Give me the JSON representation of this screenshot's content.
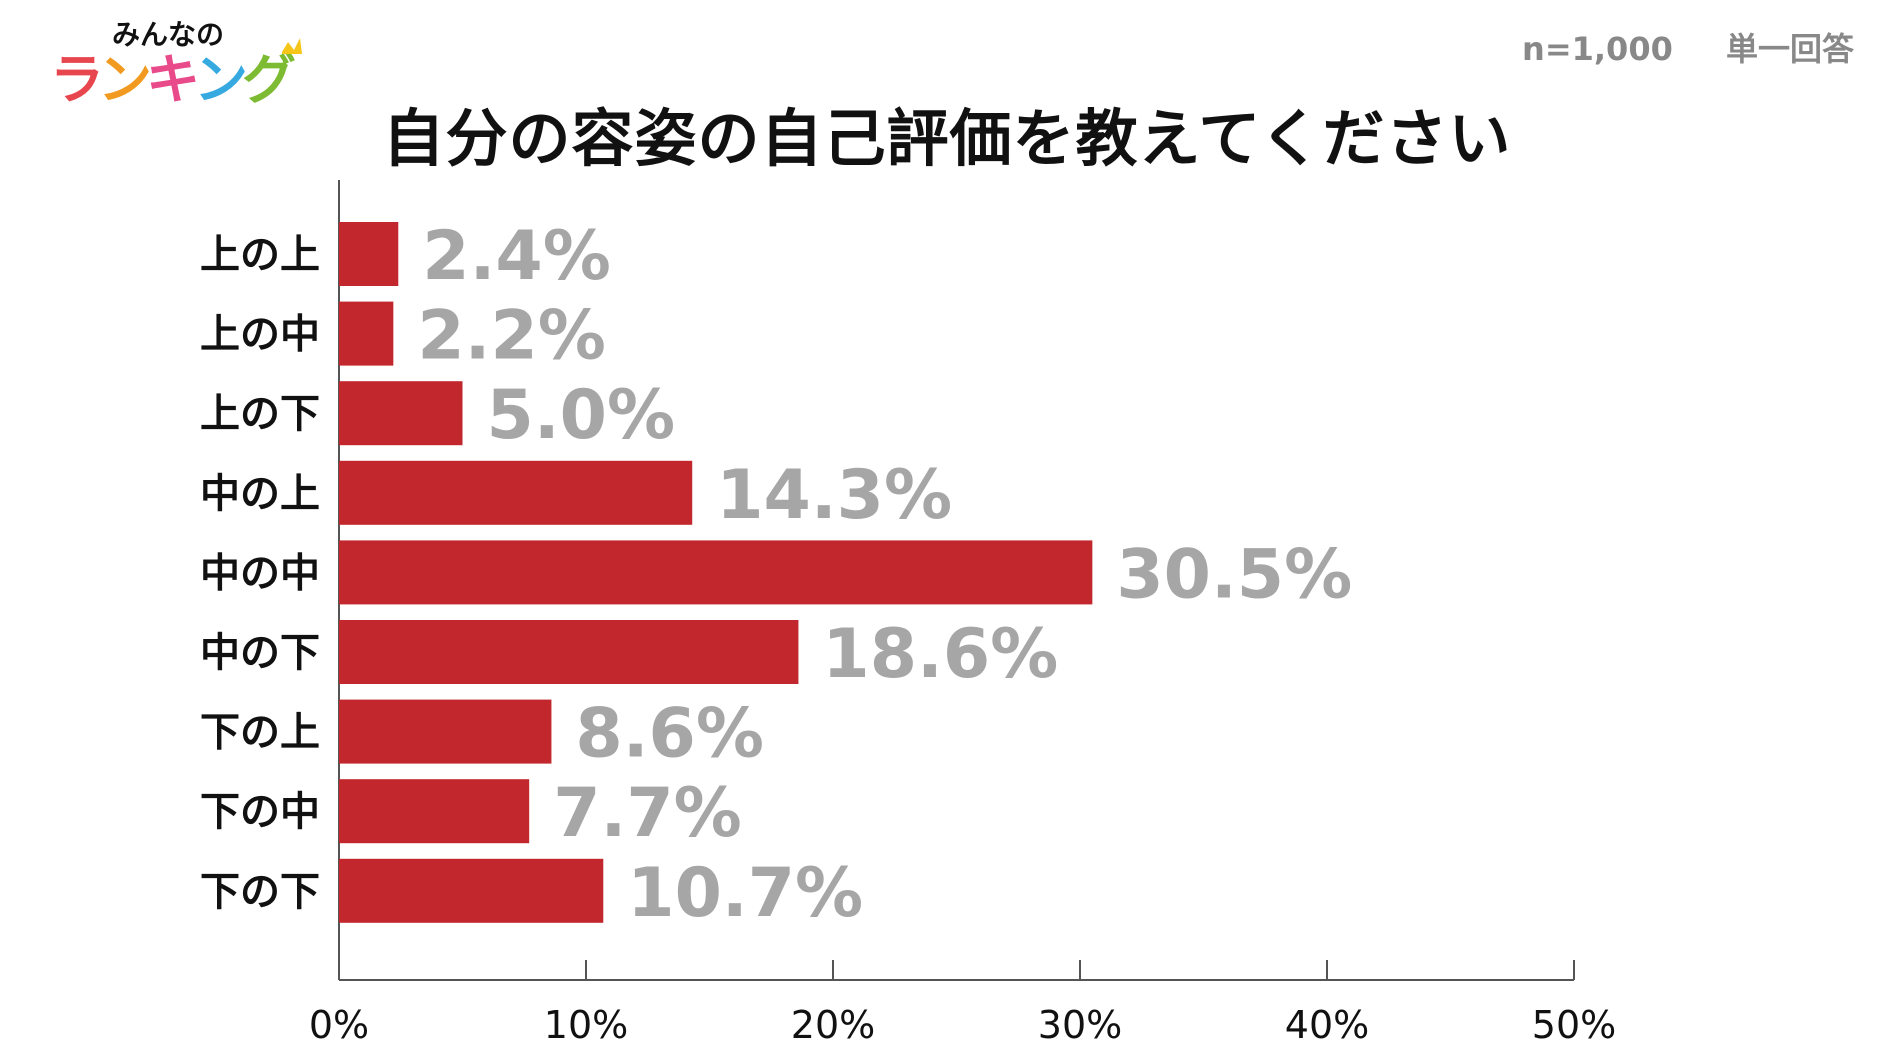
{
  "logo": {
    "top_text": "みんなの",
    "main_text": [
      "ラ",
      "ン",
      "キ",
      "ン",
      "グ"
    ],
    "main_colors": [
      "#e8464f",
      "#f29a1f",
      "#e84a8a",
      "#35a9e0",
      "#7dbb33"
    ],
    "crown_color": "#f5c518"
  },
  "meta": {
    "sample": "n=1,000",
    "answer_type": "単一回答"
  },
  "colors": {
    "bar": "#c1272d",
    "value_label": "#a6a6a6",
    "axis": "#555555"
  },
  "chart_data": {
    "type": "bar",
    "orientation": "horizontal",
    "title": "自分の容姿の自己評価を教えてください",
    "categories": [
      "上の上",
      "上の中",
      "上の下",
      "中の上",
      "中の中",
      "中の下",
      "下の上",
      "下の中",
      "下の下"
    ],
    "values": [
      2.4,
      2.2,
      5.0,
      14.3,
      30.5,
      18.6,
      8.6,
      7.7,
      10.7
    ],
    "value_labels": [
      "2.4%",
      "2.2%",
      "5.0%",
      "14.3%",
      "30.5%",
      "18.6%",
      "8.6%",
      "7.7%",
      "10.7%"
    ],
    "xlim": [
      0,
      50
    ],
    "xticks": [
      0,
      10,
      20,
      30,
      40,
      50
    ],
    "xtick_labels": [
      "0%",
      "10%",
      "20%",
      "30%",
      "40%",
      "50%"
    ],
    "grid": false,
    "legend": "none"
  }
}
